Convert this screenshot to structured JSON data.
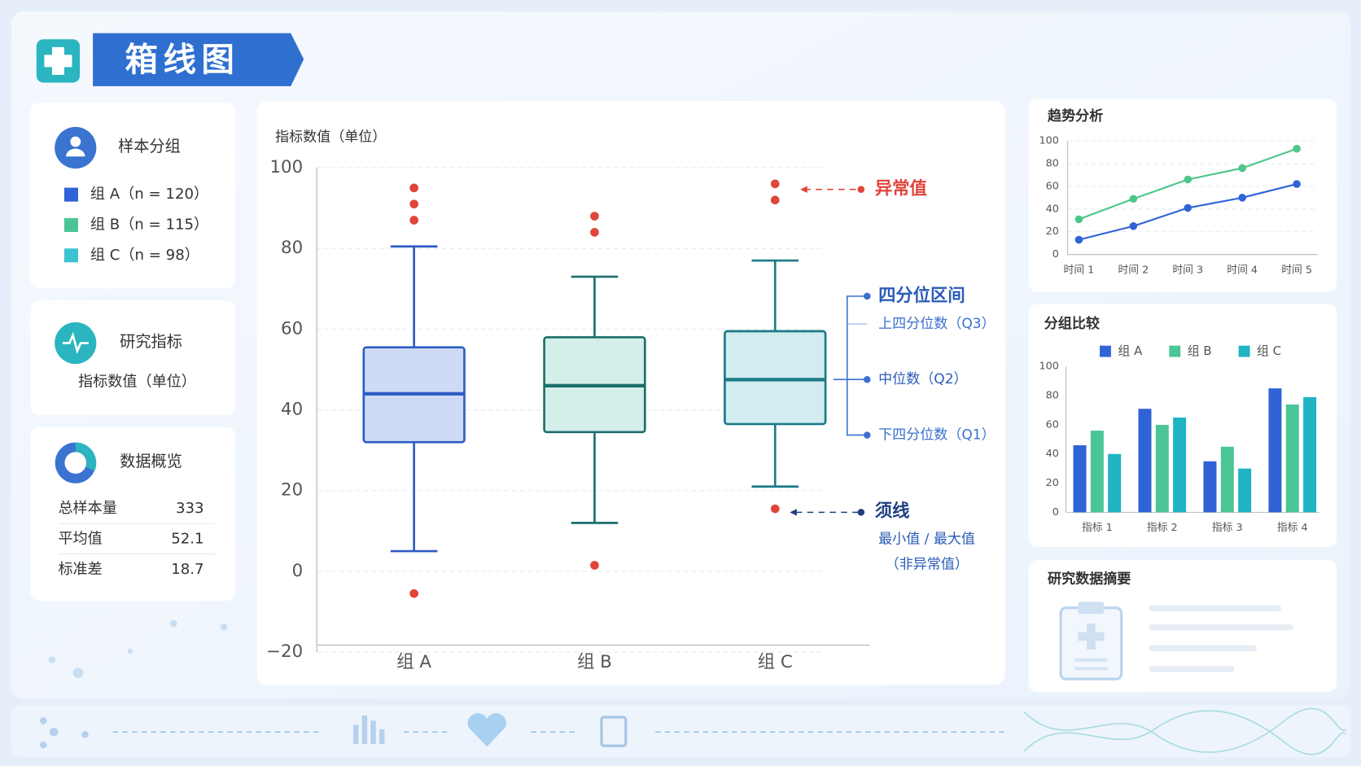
{
  "header": {
    "title": "箱线图"
  },
  "panels": {
    "groups": {
      "title": "样本分组",
      "items": [
        {
          "label": "组 A（n = 120）",
          "color": "#2f63d6"
        },
        {
          "label": "组 B（n = 115）",
          "color": "#4cc596"
        },
        {
          "label": "组 C（n = 98）",
          "color": "#3cc3d0"
        }
      ]
    },
    "indicator": {
      "title": "研究指标",
      "text": "指标数值（单位）"
    },
    "overview": {
      "title": "数据概览",
      "rows": [
        {
          "label": "总样本量",
          "value": 333
        },
        {
          "label": "平均值",
          "value": 52.1
        },
        {
          "label": "标准差",
          "value": 18.7
        }
      ]
    },
    "summary": {
      "title": "研究数据摘要"
    }
  },
  "chart_data": [
    {
      "type": "box",
      "y_label": "指标数值（单位）",
      "categories": [
        "组 A",
        "组 B",
        "组 C"
      ],
      "whisker_low": [
        5,
        12,
        21
      ],
      "q1": [
        32,
        34.5,
        36.5
      ],
      "median": [
        44,
        46,
        47.5
      ],
      "q3": [
        55.5,
        58,
        59.5
      ],
      "whisker_high": [
        80.5,
        73,
        77
      ],
      "outliers": [
        [
          95,
          91,
          87,
          -5.5
        ],
        [
          88,
          84,
          1.5
        ],
        [
          96,
          92,
          15.5
        ]
      ],
      "colors": [
        "#2d5cc4",
        "#1d6e6c",
        "#1b7a86"
      ],
      "fill_colors": [
        "#cfdbf5",
        "#d4eeea",
        "#d2ecef"
      ],
      "outlier_color": "#e0443a",
      "ylim": [
        -20,
        100
      ],
      "yticks": [
        {
          "value": -20,
          "label": "−20"
        },
        0,
        20,
        40,
        60,
        80,
        100
      ],
      "grid": true,
      "annotations": [
        "异常值",
        "四分位区间",
        "上四分位数（Q3）",
        "中位数（Q2）",
        "下四分位数（Q1）",
        "须线",
        "最小值 / 最大值",
        "（非异常值）"
      ]
    },
    {
      "type": "line",
      "title": "趋势分析",
      "categories": [
        "时间 1",
        "时间 2",
        "时间 3",
        "时间 4",
        "时间 5"
      ],
      "series": [
        {
          "color": "#4cc68a",
          "values": [
            31,
            49,
            66,
            76,
            93
          ]
        },
        {
          "color": "#2f63d6",
          "values": [
            13,
            25,
            41,
            50,
            62
          ]
        }
      ],
      "ylim": [
        0,
        100
      ],
      "yticks": [
        0,
        20,
        40,
        60,
        80,
        100
      ],
      "grid": true
    },
    {
      "type": "bar",
      "title": "分组比较",
      "categories": [
        "指标 1",
        "指标 2",
        "指标 3",
        "指标 4"
      ],
      "series": [
        {
          "name": "组 A",
          "color": "#2f63d6",
          "values": [
            46,
            71,
            35,
            85
          ]
        },
        {
          "name": "组 B",
          "color": "#4cc596",
          "values": [
            56,
            60,
            45,
            74
          ]
        },
        {
          "name": "组 C",
          "color": "#1fb3c4",
          "values": [
            40,
            65,
            30,
            79
          ]
        }
      ],
      "ylim": [
        0,
        100
      ],
      "yticks": [
        0,
        20,
        40,
        60,
        80,
        100
      ],
      "grid": false
    }
  ]
}
